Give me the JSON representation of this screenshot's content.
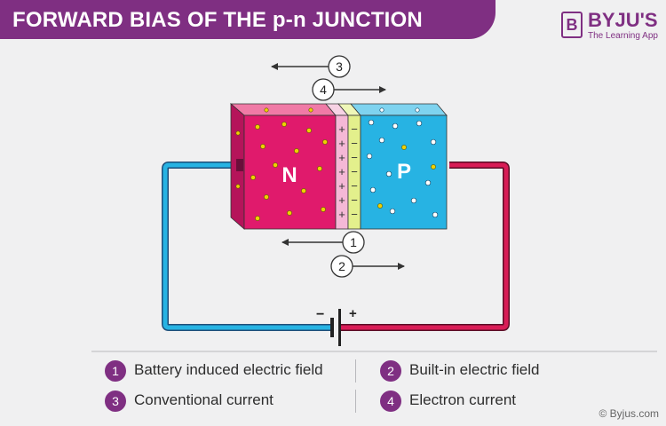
{
  "title": "FORWARD BIAS OF THE p-n JUNCTION",
  "logo": {
    "initial": "B",
    "name": "BYJU'S",
    "tagline": "The Learning App"
  },
  "diagram": {
    "n_label": "N",
    "p_label": "P",
    "junction_plus": "+",
    "junction_minus": "−",
    "battery_minus": "−",
    "battery_plus": "+",
    "arrow_numbers": [
      "3",
      "4",
      "1",
      "2"
    ]
  },
  "legend": {
    "items": [
      {
        "number": "1",
        "label": "Battery induced electric field"
      },
      {
        "number": "2",
        "label": "Built-in electric field"
      },
      {
        "number": "3",
        "label": "Conventional current"
      },
      {
        "number": "4",
        "label": "Electron current"
      }
    ]
  },
  "copyright": "© Byjus.com",
  "colors": {
    "banner": "#7f2f82",
    "n_region": "#e01a6c",
    "p_region": "#27b3e3",
    "depletion_n": "#f5b8d6",
    "depletion_p": "#e3f08c",
    "wire_left": "#27b3e3",
    "wire_right": "#d81c56",
    "electron_dot": "#f0d000",
    "hole_dot": "#ffffff"
  }
}
